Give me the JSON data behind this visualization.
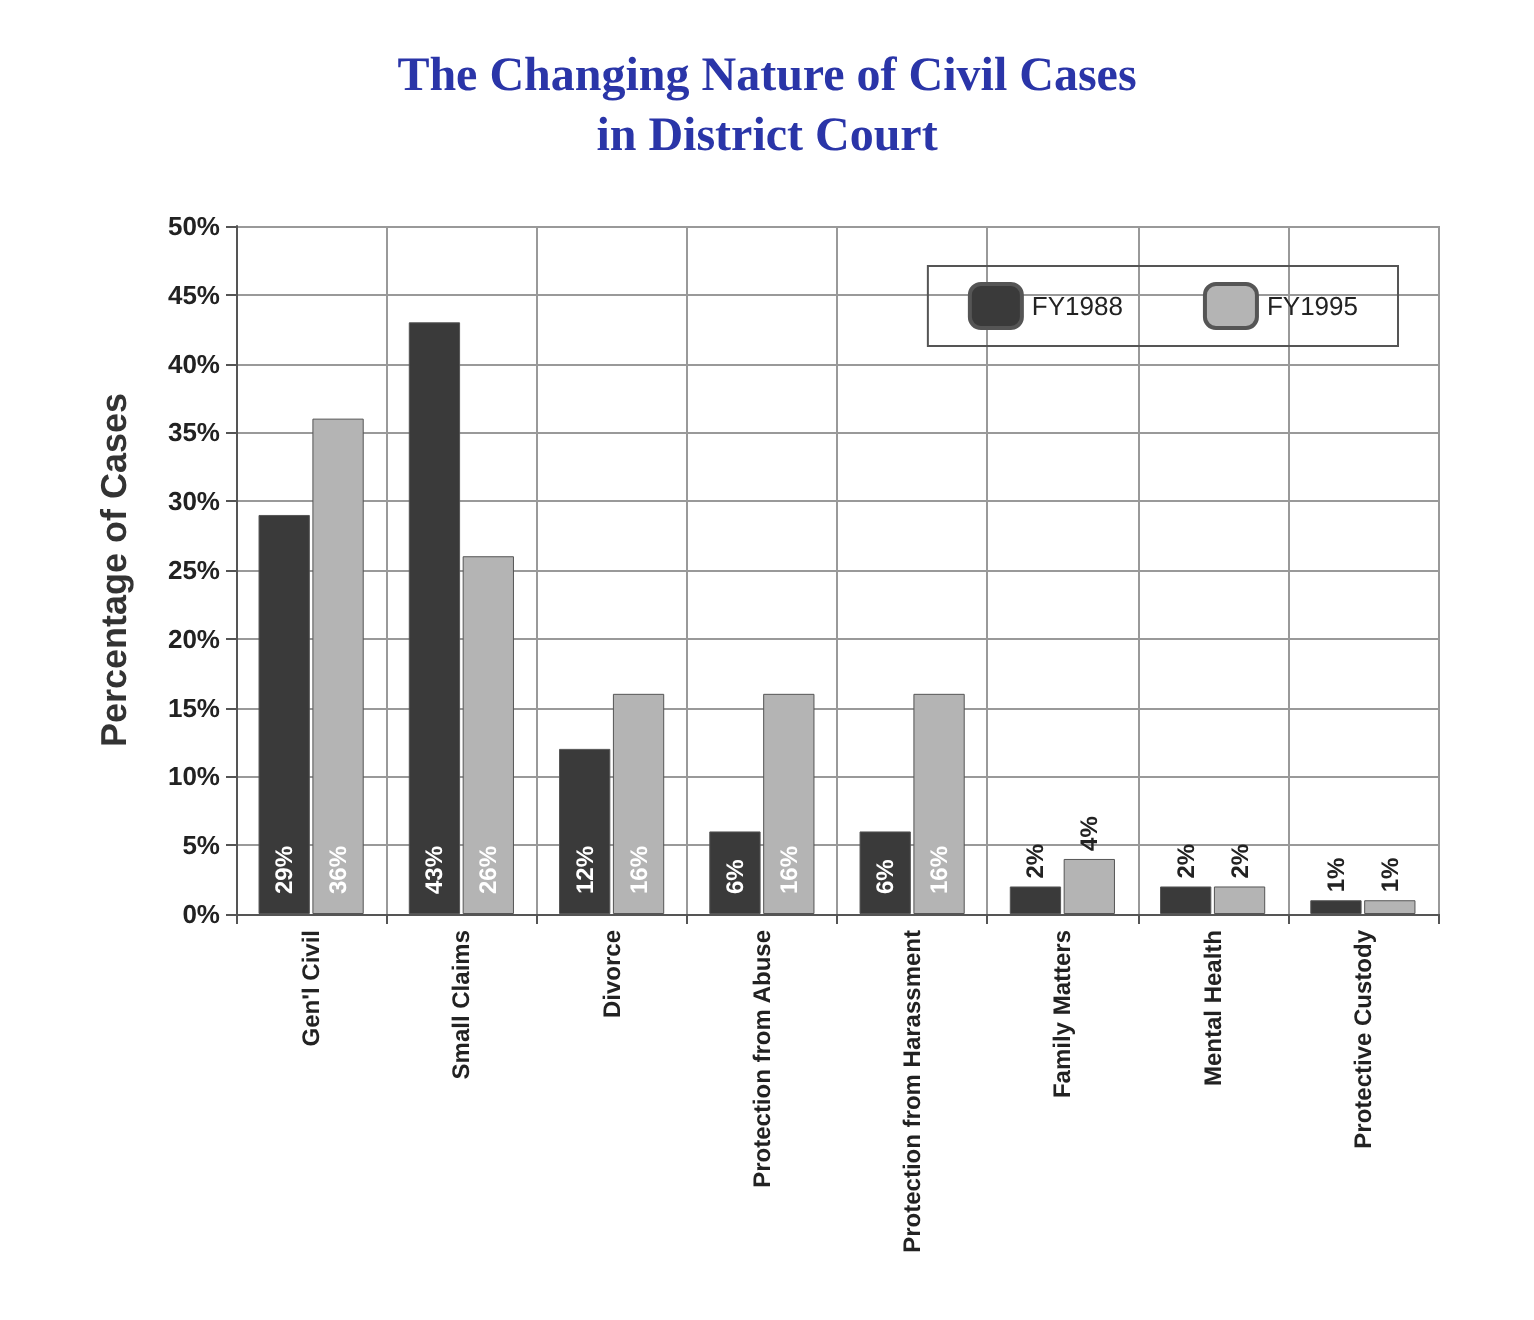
{
  "chart_data": {
    "type": "bar",
    "title": "The Changing Nature of Civil Cases\nin District Court",
    "ylabel": "Percentage of Cases",
    "categories": [
      "Gen'l Civil",
      "Small Claims",
      "Divorce",
      "Protection from Abuse",
      "Protection from Harassment",
      "Family Matters",
      "Mental Health",
      "Protective Custody"
    ],
    "series": [
      {
        "name": "FY1988",
        "color": "#3a3a3a",
        "values": [
          29,
          43,
          12,
          6,
          6,
          2,
          2,
          1
        ],
        "value_labels": [
          "29%",
          "43%",
          "12%",
          "6%",
          "6%",
          "2%",
          "2%",
          "1%"
        ]
      },
      {
        "name": "FY1995",
        "color": "#b4b4b4",
        "values": [
          36,
          26,
          16,
          16,
          16,
          4,
          2,
          1
        ],
        "value_labels": [
          "36%",
          "26%",
          "16%",
          "16%",
          "16%",
          "4%",
          "2%",
          "1%"
        ]
      }
    ],
    "ylim": [
      0,
      50
    ],
    "yticks": [
      {
        "value": 0,
        "label": "0%"
      },
      {
        "value": 5,
        "label": "5%"
      },
      {
        "value": 10,
        "label": "10%"
      },
      {
        "value": 15,
        "label": "15%"
      },
      {
        "value": 20,
        "label": "20%"
      },
      {
        "value": 25,
        "label": "25%"
      },
      {
        "value": 30,
        "label": "30%"
      },
      {
        "value": 35,
        "label": "35%"
      },
      {
        "value": 40,
        "label": "40%"
      },
      {
        "value": 45,
        "label": "45%"
      },
      {
        "value": 50,
        "label": "50%"
      }
    ],
    "grid": true,
    "legend": "top right"
  }
}
